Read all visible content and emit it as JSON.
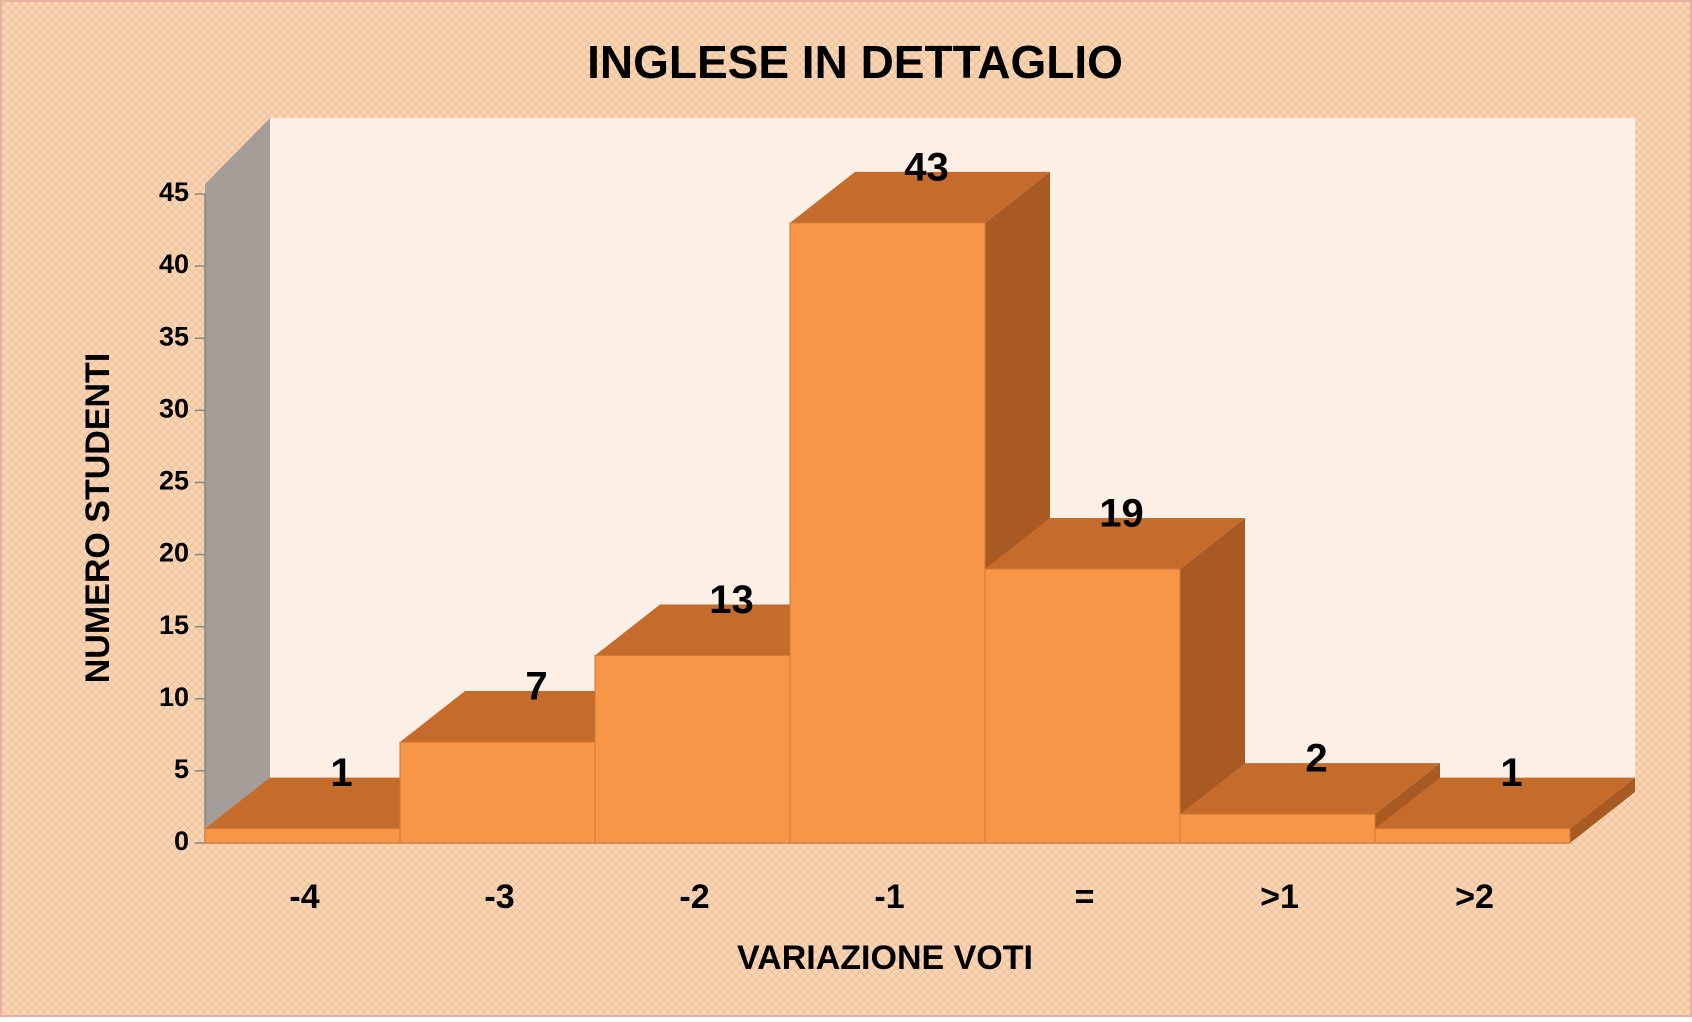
{
  "chart_data": {
    "type": "bar",
    "title": "INGLESE IN DETTAGLIO",
    "x_label": "VARIAZIONE VOTI",
    "y_label": "NUMERO STUDENTI",
    "categories": [
      "-4",
      "-3",
      "-2",
      "-1",
      "=",
      ">1",
      ">2"
    ],
    "values": [
      1,
      7,
      13,
      43,
      19,
      2,
      1
    ],
    "color": "#f79646",
    "ylim": [
      0,
      45
    ],
    "yticks": [
      0,
      5,
      10,
      15,
      20,
      25,
      30,
      35,
      40,
      45
    ]
  }
}
